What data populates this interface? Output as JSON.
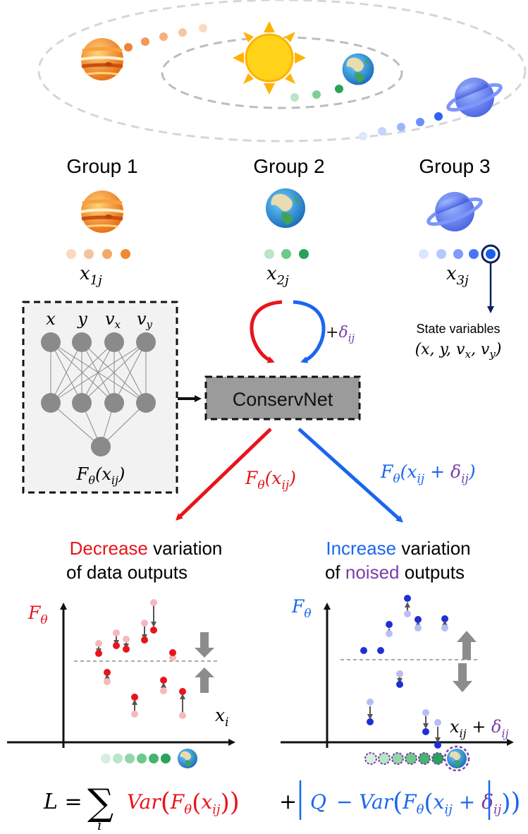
{
  "groups": [
    {
      "title": "Group 1",
      "var_base": "x",
      "var_sub": "1j"
    },
    {
      "title": "Group 2",
      "var_base": "x",
      "var_sub": "2j"
    },
    {
      "title": "Group 3",
      "var_base": "x",
      "var_sub": "3j"
    }
  ],
  "state_variables": {
    "label": "State variables",
    "tuple": "(x, y, v_x, v_y)"
  },
  "network": {
    "inputs": [
      "x",
      "y",
      "v_x",
      "v_y"
    ],
    "output_label": "F_θ(x_ij)"
  },
  "conservnet": {
    "label": "ConservNet"
  },
  "noise_label": "+δ_ij",
  "branch_left": {
    "label": "F_θ(x_ij)",
    "title_accent": "Decrease",
    "title_rest": " variation",
    "title_line2": "of data outputs",
    "accent_color": "#e8141c"
  },
  "branch_right": {
    "label": "F_θ(x_ij + δ_ij)",
    "title_accent": "Increase",
    "title_rest": " variation",
    "title_line2_pre": "of ",
    "title_line2_accent": "noised",
    "title_line2_post": " outputs",
    "accent_color": "#1a66f0",
    "noise_color": "#7b3fa6"
  },
  "plot_left": {
    "ylabel": "F_θ",
    "xlabel": "x_i"
  },
  "plot_right": {
    "ylabel": "F_θ",
    "xlabel": "x_ij + δ_ij"
  },
  "loss": {
    "lhs": "L =",
    "sum_index": "i",
    "term1": "Var(F_θ(x_ij))",
    "plus": "+",
    "term2_q": "Q",
    "term2": "− Var(F_θ(x_ij + δ_ij))"
  },
  "colors": {
    "red": "#e8141c",
    "blue": "#1a66f0",
    "purple": "#7b3fa6",
    "orange": "#f08a24",
    "green": "#27a35a",
    "gray": "#8c8c8c"
  }
}
